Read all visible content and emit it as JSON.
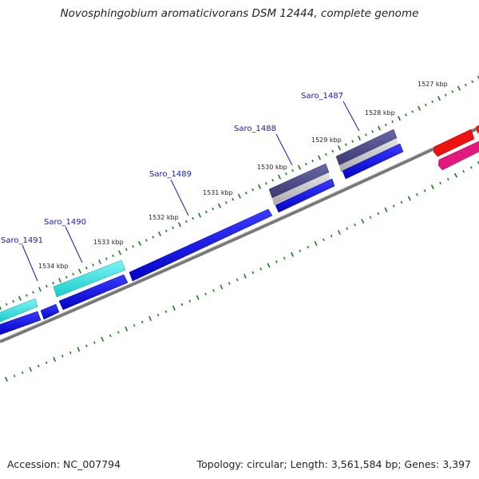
{
  "title": "Novosphingobium aromaticivorans DSM 12444, complete genome",
  "footer": {
    "accession": "Accession: NC_007794",
    "summary": "Topology: circular; Length: 3,561,584 bp; Genes: 3,397"
  },
  "gene_labels": [
    "Saro_1487",
    "Saro_1488",
    "Saro_1489",
    "Saro_1490",
    "Saro_1491"
  ],
  "kbp_labels": [
    "1527 kbp",
    "1528 kbp",
    "1529 kbp",
    "1530 kbp",
    "1531 kbp",
    "1532 kbp",
    "1533 kbp",
    "1534 kbp"
  ],
  "colors": {
    "cds": "#0000ee",
    "gene_cyan": "#22dddd",
    "gene_slate": "#4b4a8c",
    "gene_gray": "#bdbdbd",
    "gene_red": "#ee1111",
    "gene_pink": "#e3187e",
    "backbone": "#777777",
    "tick": "#1f7a1f",
    "label_line": "#1a1aa0"
  }
}
